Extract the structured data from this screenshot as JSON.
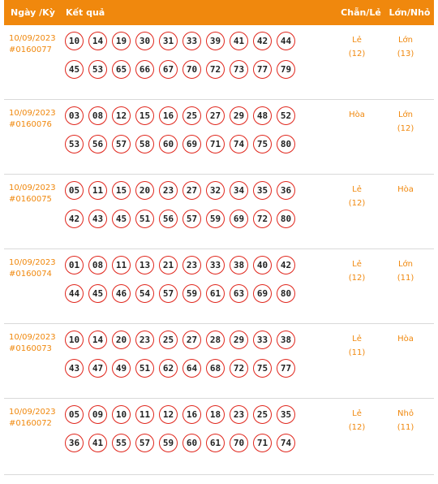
{
  "header": {
    "date": "Ngày /Kỳ",
    "result": "Kết quả",
    "chanle": "Chẵn/Lẻ",
    "lonnho": "Lớn/Nhỏ"
  },
  "draws": [
    {
      "date": "10/09/2023",
      "id": "#0160077",
      "line1": [
        "10",
        "14",
        "19",
        "30",
        "31",
        "33",
        "39",
        "41",
        "42",
        "44"
      ],
      "line2": [
        "45",
        "53",
        "65",
        "66",
        "67",
        "70",
        "72",
        "73",
        "77",
        "79"
      ],
      "chanle": "Lẻ",
      "chanle_count": "(12)",
      "lonnho": "Lớn",
      "lonnho_count": "(13)"
    },
    {
      "date": "10/09/2023",
      "id": "#0160076",
      "line1": [
        "03",
        "08",
        "12",
        "15",
        "16",
        "25",
        "27",
        "29",
        "48",
        "52"
      ],
      "line2": [
        "53",
        "56",
        "57",
        "58",
        "60",
        "69",
        "71",
        "74",
        "75",
        "80"
      ],
      "chanle": "Hòa",
      "chanle_count": "",
      "lonnho": "Lớn",
      "lonnho_count": "(12)"
    },
    {
      "date": "10/09/2023",
      "id": "#0160075",
      "line1": [
        "05",
        "11",
        "15",
        "20",
        "23",
        "27",
        "32",
        "34",
        "35",
        "36"
      ],
      "line2": [
        "42",
        "43",
        "45",
        "51",
        "56",
        "57",
        "59",
        "69",
        "72",
        "80"
      ],
      "chanle": "Lẻ",
      "chanle_count": "(12)",
      "lonnho": "Hòa",
      "lonnho_count": ""
    },
    {
      "date": "10/09/2023",
      "id": "#0160074",
      "line1": [
        "01",
        "08",
        "11",
        "13",
        "21",
        "23",
        "33",
        "38",
        "40",
        "42"
      ],
      "line2": [
        "44",
        "45",
        "46",
        "54",
        "57",
        "59",
        "61",
        "63",
        "69",
        "80"
      ],
      "chanle": "Lẻ",
      "chanle_count": "(12)",
      "lonnho": "Lớn",
      "lonnho_count": "(11)"
    },
    {
      "date": "10/09/2023",
      "id": "#0160073",
      "line1": [
        "10",
        "14",
        "20",
        "23",
        "25",
        "27",
        "28",
        "29",
        "33",
        "38"
      ],
      "line2": [
        "43",
        "47",
        "49",
        "51",
        "62",
        "64",
        "68",
        "72",
        "75",
        "77"
      ],
      "chanle": "Lẻ",
      "chanle_count": "(11)",
      "lonnho": "Hòa",
      "lonnho_count": ""
    },
    {
      "date": "10/09/2023",
      "id": "#0160072",
      "line1": [
        "05",
        "09",
        "10",
        "11",
        "12",
        "16",
        "18",
        "23",
        "25",
        "35"
      ],
      "line2": [
        "36",
        "41",
        "55",
        "57",
        "59",
        "60",
        "61",
        "70",
        "71",
        "74"
      ],
      "chanle": "Lẻ",
      "chanle_count": "(12)",
      "lonnho": "Nhỏ",
      "lonnho_count": "(11)"
    }
  ]
}
